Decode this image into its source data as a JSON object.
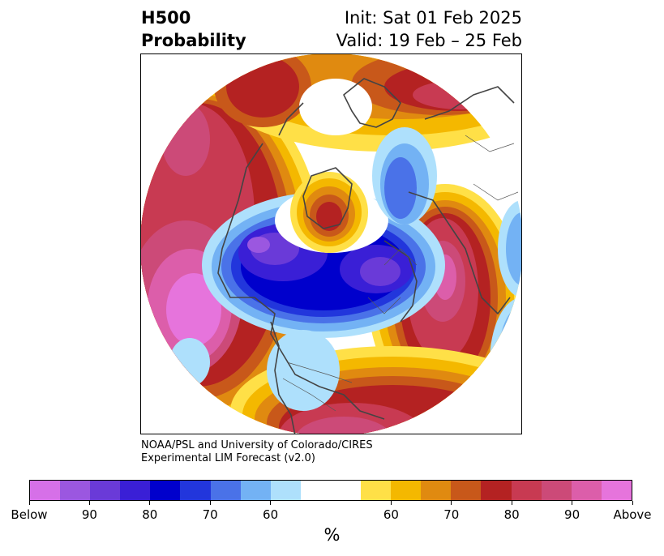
{
  "title": {
    "line1": "H500",
    "line2": "Probability",
    "init": "Init: Sat 01 Feb 2025",
    "valid": "Valid: 19 Feb – 25 Feb"
  },
  "credit": {
    "line1": "NOAA/PSL and University of Colorado/CIRES",
    "line2": "Experimental LIM Forecast (v2.0)"
  },
  "colorbar": {
    "unit": "%",
    "colors": [
      "#d670e8",
      "#9b57e0",
      "#6a3ad8",
      "#3a1fd6",
      "#0000cc",
      "#2236dc",
      "#4a72e8",
      "#73b2f4",
      "#aee0fc",
      "#ffffff",
      "#ffffff",
      "#ffe047",
      "#f4b800",
      "#e08a10",
      "#c8581a",
      "#b42222",
      "#c83a52",
      "#cc4a78",
      "#dc5eaa",
      "#e674dc"
    ],
    "labels": [
      "Below",
      "90",
      "80",
      "70",
      "60",
      "60",
      "70",
      "80",
      "90",
      "Above"
    ]
  },
  "map": {
    "projection": "north-polar-stereographic",
    "legend_meaning": "probability of below/above normal 500-hPa height"
  }
}
